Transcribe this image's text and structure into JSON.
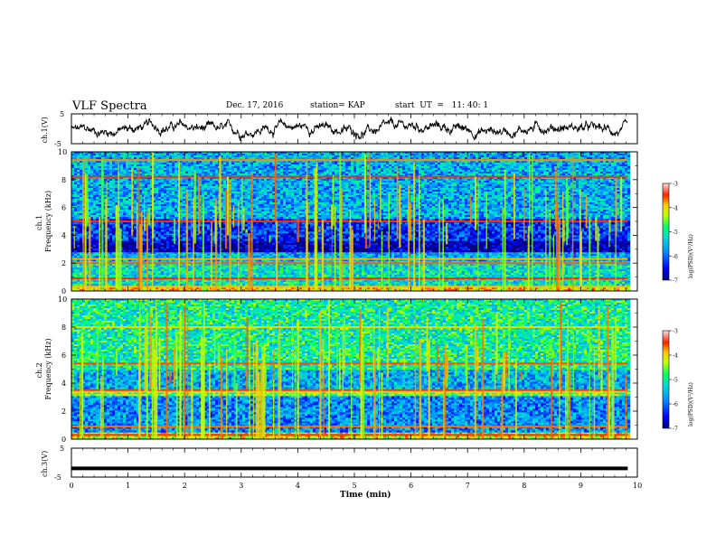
{
  "header": {
    "title": "VLF Spectra",
    "date": "Dec. 17, 2016",
    "station": "station= KAP",
    "start": "start  UT  =   11: 40: 1"
  },
  "chart_data": [
    {
      "type": "line",
      "panel": "ch1-waveform",
      "ylabel": "ch.1(V)",
      "ylim": [
        -5,
        5
      ],
      "yticks": [
        "5",
        "-5"
      ],
      "xlim": [
        0,
        10
      ],
      "x_data_range": [
        0,
        9.83
      ],
      "series": [
        {
          "description_values": "noisy signal around 0 V, amplitude approx. ±4 V"
        }
      ]
    },
    {
      "type": "heatmap",
      "panel": "ch1-spectrogram",
      "ylabel_top": "ch.1",
      "ylabel": "Frequency (kHz)",
      "ylim": [
        0,
        10
      ],
      "yticks": [
        0,
        2,
        4,
        6,
        8,
        10
      ],
      "xlim": [
        0,
        10
      ],
      "x_data_range": [
        0,
        9.83
      ],
      "colorbar": {
        "label": "log(PSD)(V²/Hz)",
        "range": [
          -7,
          -3
        ],
        "ticks": [
          "-3",
          "-4",
          "-5",
          "-6",
          "-7"
        ]
      },
      "bands": [
        {
          "f_range": [
            0,
            0.5
          ],
          "level": -3.9
        },
        {
          "f_range": [
            0.5,
            2.2
          ],
          "level": -5.2
        },
        {
          "f_range": [
            2.2,
            2.8
          ],
          "level": -5.6
        },
        {
          "f_range": [
            2.8,
            3.7
          ],
          "level": -6.9
        },
        {
          "f_range": [
            3.7,
            5.3
          ],
          "level": -6.3
        },
        {
          "f_range": [
            5.3,
            10
          ],
          "level": -5.6
        }
      ],
      "lines_kHz": [
        0.3,
        0.9,
        2.0,
        2.3,
        5.0,
        8.2,
        9.4
      ]
    },
    {
      "type": "heatmap",
      "panel": "ch2-spectrogram",
      "ylabel_top": "ch.2",
      "ylabel": "Frequency (kHz)",
      "ylim": [
        0,
        10
      ],
      "yticks": [
        0,
        2,
        4,
        6,
        8,
        10
      ],
      "xlim": [
        0,
        10
      ],
      "x_data_range": [
        0,
        9.83
      ],
      "colorbar": {
        "label": "log(PSD)(V²/Hz)",
        "range": [
          -7,
          -3
        ],
        "ticks": [
          "-3",
          "-4",
          "-5",
          "-6",
          "-7"
        ]
      },
      "bands": [
        {
          "f_range": [
            0,
            0.5
          ],
          "level": -4.2
        },
        {
          "f_range": [
            0.5,
            3.2
          ],
          "level": -5.8
        },
        {
          "f_range": [
            3.2,
            3.6
          ],
          "level": -4.5
        },
        {
          "f_range": [
            3.6,
            5.0
          ],
          "level": -5.6
        },
        {
          "f_range": [
            5.0,
            10
          ],
          "level": -5.0
        }
      ],
      "lines_kHz": [
        0.3,
        0.9,
        3.4,
        3.5,
        5.4,
        8.0
      ]
    },
    {
      "type": "line",
      "panel": "ch3-waveform",
      "ylabel": "ch.3(V)",
      "ylim": [
        -5,
        5
      ],
      "yticks": [
        "5",
        "-5"
      ],
      "xlim": [
        0,
        10
      ],
      "x_data_range": [
        0,
        9.83
      ],
      "xlabel": "Time (min)",
      "xticks": [
        0,
        1,
        2,
        3,
        4,
        5,
        6,
        7,
        8,
        9,
        10
      ],
      "series": [
        {
          "values_constant": -2.0
        }
      ]
    }
  ]
}
